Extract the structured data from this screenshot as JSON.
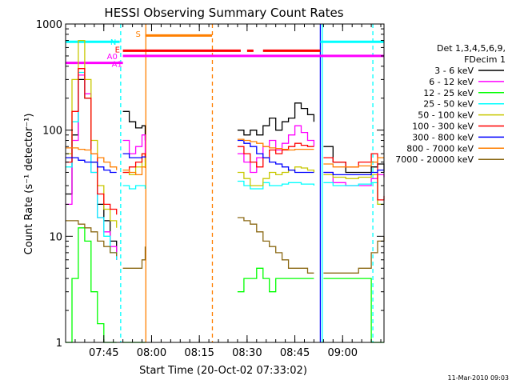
{
  "chart_data": {
    "type": "line",
    "title": "HESSI Observing Summary Count Rates",
    "xlabel": "Start Time (20-Oct-02 07:33:02)",
    "ylabel": "Count Rate (s⁻¹ detector⁻¹)",
    "yscale": "log",
    "ylim": [
      1,
      1000
    ],
    "x_unit": "minutes after 07:33:02 (20-Oct-02)",
    "xlim": [
      0,
      100
    ],
    "x_ticks": [
      {
        "x": 12,
        "label": "07:45"
      },
      {
        "x": 27,
        "label": "08:00"
      },
      {
        "x": 42,
        "label": "08:15"
      },
      {
        "x": 57,
        "label": "08:30"
      },
      {
        "x": 72,
        "label": "08:45"
      },
      {
        "x": 87,
        "label": "09:00"
      }
    ],
    "y_ticks": [
      {
        "y": 1,
        "label": "1"
      },
      {
        "y": 10,
        "label": "10"
      },
      {
        "y": 100,
        "label": "100"
      },
      {
        "y": 1000,
        "label": "1000"
      }
    ],
    "legend_header": [
      "Det 1,3,4,5,6,9,",
      "FDecim 1"
    ],
    "legend_position": "right",
    "footer_timestamp": "11-Mar-2010 09:03",
    "flag_labels": {
      "S": "S",
      "N": "N",
      "E": "E",
      "A0": "A0",
      "A1": "A1"
    },
    "flags": [
      {
        "label": "S",
        "color": "#ff7f00",
        "y": 780,
        "segments": [
          [
            25,
            46
          ]
        ]
      },
      {
        "label": "N",
        "color": "#00ffff",
        "y": 680,
        "segments": [
          [
            0,
            17
          ],
          [
            80,
            100
          ]
        ]
      },
      {
        "label": "E",
        "color": "#ff0000",
        "y": 560,
        "segments": [
          [
            18,
            55
          ],
          [
            57,
            59
          ],
          [
            62,
            80
          ]
        ]
      },
      {
        "label": "A0",
        "color": "#ff00ff",
        "y": 500,
        "segments": [
          [
            18,
            100
          ]
        ]
      },
      {
        "label": "A1",
        "color": "#ff00ff",
        "y": 430,
        "segments": [
          [
            0,
            18
          ]
        ]
      }
    ],
    "vlines": [
      {
        "x": 17.3,
        "color": "#00ffff",
        "style": "dashed"
      },
      {
        "x": 25.2,
        "color": "#ff7f00",
        "style": "solid"
      },
      {
        "x": 46.1,
        "color": "#ff7f00",
        "style": "dashed"
      },
      {
        "x": 80.0,
        "color": "#0000ff",
        "style": "solid"
      },
      {
        "x": 80.6,
        "color": "#00ffff",
        "style": "solid"
      },
      {
        "x": 96.5,
        "color": "#00ffff",
        "style": "dashed"
      }
    ],
    "series": [
      {
        "name": "3 - 6 keV",
        "color": "#000000",
        "x": [
          0,
          2,
          4,
          6,
          8,
          10,
          12,
          14,
          16,
          17,
          18,
          20,
          22,
          24,
          25,
          28,
          32,
          36,
          40,
          44,
          46,
          54,
          56,
          58,
          60,
          62,
          64,
          66,
          68,
          70,
          72,
          74,
          76,
          78,
          80,
          81,
          84,
          88,
          92,
          96,
          98,
          100
        ],
        "y": [
          25,
          90,
          300,
          200,
          50,
          20,
          14,
          9,
          6,
          null,
          150,
          120,
          105,
          110,
          80,
          null,
          null,
          null,
          null,
          null,
          null,
          100,
          90,
          100,
          90,
          110,
          130,
          100,
          120,
          130,
          180,
          160,
          140,
          120,
          null,
          70,
          50,
          40,
          40,
          45,
          48,
          40
        ]
      },
      {
        "name": "6 - 12 keV",
        "color": "#ff00ff",
        "x": [
          0,
          2,
          4,
          6,
          8,
          10,
          12,
          14,
          16,
          17,
          18,
          20,
          22,
          24,
          25,
          28,
          32,
          36,
          40,
          44,
          46,
          54,
          56,
          58,
          60,
          62,
          64,
          66,
          68,
          70,
          72,
          74,
          76,
          78,
          80,
          81,
          84,
          88,
          92,
          96,
          98,
          100
        ],
        "y": [
          20,
          80,
          330,
          220,
          40,
          15,
          11,
          8,
          6,
          null,
          80,
          60,
          70,
          90,
          50,
          null,
          null,
          null,
          null,
          null,
          null,
          60,
          50,
          40,
          55,
          70,
          80,
          65,
          75,
          90,
          110,
          95,
          80,
          70,
          null,
          40,
          32,
          30,
          30,
          35,
          38,
          36
        ]
      },
      {
        "name": "12 - 25 keV",
        "color": "#00ff00",
        "x": [
          0,
          2,
          4,
          6,
          8,
          10,
          12,
          14,
          16,
          17,
          18,
          20,
          22,
          24,
          25,
          28,
          32,
          36,
          40,
          44,
          46,
          54,
          56,
          58,
          60,
          62,
          64,
          66,
          68,
          70,
          72,
          74,
          76,
          78,
          80,
          81,
          84,
          88,
          92,
          96,
          98,
          100
        ],
        "y": [
          1,
          4,
          12,
          9,
          3,
          1.5,
          1,
          1,
          1,
          null,
          1,
          1,
          1,
          1,
          1,
          null,
          null,
          null,
          null,
          null,
          null,
          3,
          4,
          4,
          5,
          4,
          3,
          4,
          4,
          4,
          4,
          4,
          4,
          4,
          null,
          4,
          4,
          4,
          4,
          1,
          1,
          1
        ]
      },
      {
        "name": "25 - 50 keV",
        "color": "#00ffff",
        "x": [
          0,
          2,
          4,
          6,
          8,
          10,
          12,
          14,
          16,
          17,
          18,
          20,
          22,
          24,
          25,
          28,
          32,
          36,
          40,
          44,
          46,
          54,
          56,
          58,
          60,
          62,
          64,
          66,
          68,
          70,
          72,
          74,
          76,
          78,
          80,
          81,
          84,
          88,
          92,
          96,
          98,
          100
        ],
        "y": [
          45,
          120,
          350,
          200,
          40,
          15,
          10,
          7,
          6,
          null,
          30,
          28,
          30,
          30,
          28,
          null,
          null,
          null,
          null,
          null,
          null,
          33,
          30,
          28,
          28,
          32,
          30,
          30,
          31,
          32,
          32,
          31,
          31,
          30,
          null,
          32,
          30,
          30,
          31,
          32,
          20,
          20
        ]
      },
      {
        "name": "50 - 100 keV",
        "color": "#c8c800",
        "x": [
          0,
          2,
          4,
          6,
          8,
          10,
          12,
          14,
          16,
          17,
          18,
          20,
          22,
          24,
          25,
          28,
          32,
          36,
          40,
          44,
          46,
          54,
          56,
          58,
          60,
          62,
          64,
          66,
          68,
          70,
          72,
          74,
          76,
          78,
          80,
          81,
          84,
          88,
          92,
          96,
          98,
          100
        ],
        "y": [
          60,
          300,
          700,
          300,
          80,
          30,
          18,
          14,
          12,
          null,
          40,
          38,
          45,
          60,
          45,
          null,
          null,
          null,
          null,
          null,
          null,
          40,
          35,
          30,
          30,
          35,
          40,
          38,
          40,
          42,
          45,
          44,
          42,
          40,
          null,
          38,
          36,
          35,
          36,
          38,
          20,
          20
        ]
      },
      {
        "name": "100 - 300 keV",
        "color": "#ff0000",
        "x": [
          0,
          2,
          4,
          6,
          8,
          10,
          12,
          14,
          16,
          17,
          18,
          20,
          22,
          24,
          25,
          28,
          32,
          36,
          40,
          44,
          46,
          54,
          56,
          58,
          60,
          62,
          64,
          66,
          68,
          70,
          72,
          74,
          76,
          78,
          80,
          81,
          84,
          88,
          92,
          96,
          98,
          100
        ],
        "y": [
          50,
          150,
          380,
          200,
          60,
          25,
          20,
          18,
          16,
          null,
          40,
          45,
          50,
          60,
          55,
          null,
          null,
          null,
          null,
          null,
          null,
          70,
          60,
          50,
          45,
          55,
          65,
          60,
          65,
          70,
          75,
          72,
          70,
          70,
          null,
          55,
          50,
          45,
          50,
          60,
          22,
          24
        ]
      },
      {
        "name": "300 - 800 keV",
        "color": "#0000ff",
        "x": [
          0,
          2,
          4,
          6,
          8,
          10,
          12,
          14,
          16,
          17,
          18,
          20,
          22,
          24,
          25,
          28,
          32,
          36,
          40,
          44,
          46,
          54,
          56,
          58,
          60,
          62,
          64,
          66,
          68,
          70,
          72,
          74,
          76,
          78,
          80,
          81,
          84,
          88,
          92,
          96,
          98,
          100
        ],
        "y": [
          55,
          55,
          52,
          50,
          50,
          45,
          42,
          40,
          40,
          null,
          60,
          55,
          55,
          56,
          55,
          null,
          null,
          null,
          null,
          null,
          null,
          80,
          75,
          70,
          60,
          55,
          50,
          48,
          45,
          42,
          40,
          40,
          40,
          40,
          null,
          40,
          38,
          38,
          38,
          40,
          42,
          42
        ]
      },
      {
        "name": "800 - 7000 keV",
        "color": "#ff7f00",
        "x": [
          0,
          2,
          4,
          6,
          8,
          10,
          12,
          14,
          16,
          17,
          18,
          20,
          22,
          24,
          25,
          28,
          32,
          36,
          40,
          44,
          46,
          54,
          56,
          58,
          60,
          62,
          64,
          66,
          68,
          70,
          72,
          74,
          76,
          78,
          80,
          81,
          84,
          88,
          92,
          96,
          98,
          100
        ],
        "y": [
          68,
          68,
          66,
          65,
          60,
          55,
          50,
          45,
          42,
          null,
          42,
          40,
          38,
          45,
          44,
          null,
          null,
          null,
          null,
          null,
          null,
          82,
          80,
          78,
          75,
          70,
          68,
          67,
          66,
          65,
          66,
          66,
          66,
          66,
          null,
          48,
          45,
          45,
          46,
          50,
          55,
          55
        ]
      },
      {
        "name": "7000 - 20000 keV",
        "color": "#8b6914",
        "x": [
          0,
          2,
          4,
          6,
          8,
          10,
          12,
          14,
          16,
          17,
          18,
          20,
          22,
          24,
          25,
          28,
          32,
          36,
          40,
          44,
          46,
          54,
          56,
          58,
          60,
          62,
          64,
          66,
          68,
          70,
          72,
          74,
          76,
          78,
          80,
          81,
          84,
          88,
          92,
          96,
          98,
          100
        ],
        "y": [
          14,
          14,
          13,
          12,
          11,
          9,
          8,
          7,
          6.5,
          null,
          5,
          5,
          5,
          6,
          8,
          null,
          null,
          null,
          null,
          null,
          null,
          15,
          14,
          13,
          11,
          9,
          8,
          7,
          6,
          5,
          5,
          5,
          4.5,
          4.5,
          null,
          4.5,
          4.5,
          4.5,
          5,
          7,
          9,
          10
        ]
      }
    ]
  }
}
